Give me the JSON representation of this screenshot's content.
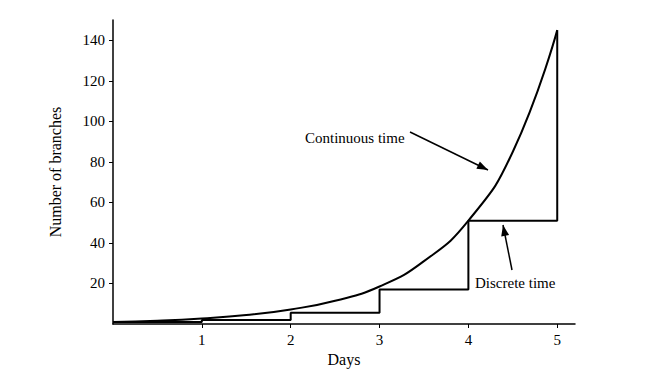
{
  "chart_data": {
    "type": "line",
    "x_label": "Days",
    "y_label": "Number of branches",
    "xlim": [
      0,
      5.2
    ],
    "xticks": [
      1,
      2,
      3,
      4,
      5
    ],
    "ylim": [
      0,
      150
    ],
    "yticks": [
      20,
      40,
      60,
      80,
      100,
      120,
      140
    ],
    "grid": false,
    "series": [
      {
        "name": "Continuous time",
        "color": "#000000",
        "line_style": "solid",
        "x": [
          0,
          0.5,
          1,
          1.5,
          2,
          2.5,
          3,
          3.5,
          4,
          4.5,
          5
        ],
        "values": [
          1,
          1.6,
          2.7,
          4.4,
          7.2,
          11.5,
          18.5,
          31,
          51,
          85,
          145
        ]
      },
      {
        "name": "Discrete time",
        "color": "#000000",
        "line_style": "step",
        "x": [
          0,
          1,
          2,
          3,
          4,
          5
        ],
        "values": [
          1,
          2,
          5.5,
          17,
          51,
          145
        ]
      }
    ]
  }
}
